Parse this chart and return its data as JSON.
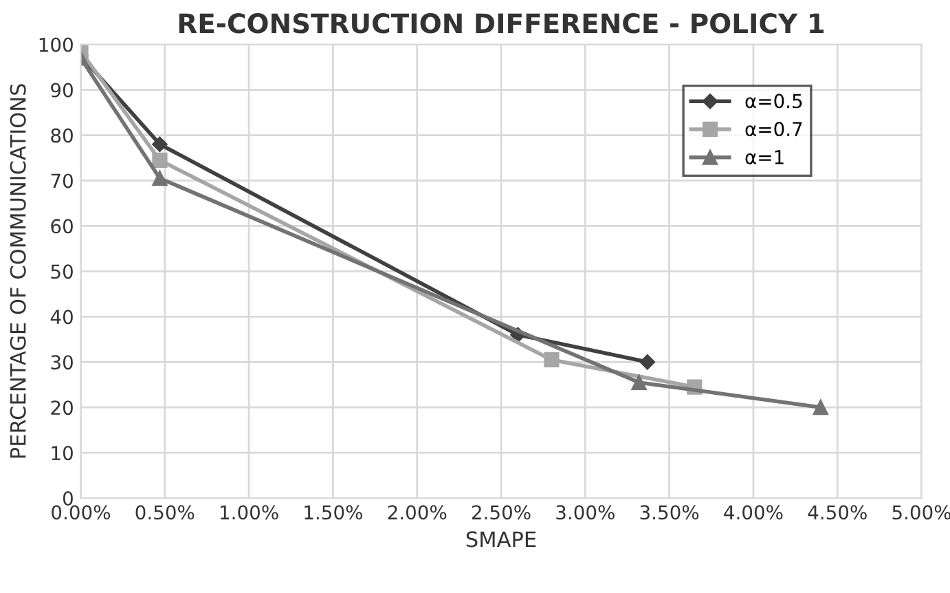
{
  "chart_data": {
    "type": "line",
    "title": "RE-CONSTRUCTION DIFFERENCE - POLICY 1",
    "xlabel": "SMAPE",
    "ylabel": "PERCENTAGE OF COMMUNICATIONS",
    "xlim": [
      0,
      5
    ],
    "xticks": [
      {
        "value": 0,
        "label": "0.00%"
      },
      {
        "value": 0.5,
        "label": "0.50%"
      },
      {
        "value": 1,
        "label": "1.00%"
      },
      {
        "value": 1.5,
        "label": "1.50%"
      },
      {
        "value": 2,
        "label": "2.00%"
      },
      {
        "value": 2.5,
        "label": "2.50%"
      },
      {
        "value": 3,
        "label": "3.00%"
      },
      {
        "value": 3.5,
        "label": "3.50%"
      },
      {
        "value": 4,
        "label": "4.00%"
      },
      {
        "value": 4.5,
        "label": "4.50%"
      },
      {
        "value": 5,
        "label": "5.00%"
      }
    ],
    "ylim": [
      0,
      100
    ],
    "yticks": [
      0,
      10,
      20,
      30,
      40,
      50,
      60,
      70,
      80,
      90,
      100
    ],
    "grid": true,
    "legend": "top right",
    "series": [
      {
        "name": "α=0.5",
        "color": "#404040",
        "marker": "diamond",
        "x": [
          0,
          0.47,
          2.6,
          3.37
        ],
        "values": [
          97.5,
          78,
          36,
          30
        ]
      },
      {
        "name": "α=0.7",
        "color": "#a6a6a6",
        "marker": "square",
        "x": [
          0,
          0.47,
          2.8,
          3.65
        ],
        "values": [
          98.5,
          74.5,
          30.5,
          24.5
        ]
      },
      {
        "name": "α=1",
        "color": "#737373",
        "marker": "triangle",
        "x": [
          0,
          0.47,
          3.32,
          4.4
        ],
        "values": [
          97,
          70.5,
          25.5,
          20
        ]
      }
    ]
  }
}
